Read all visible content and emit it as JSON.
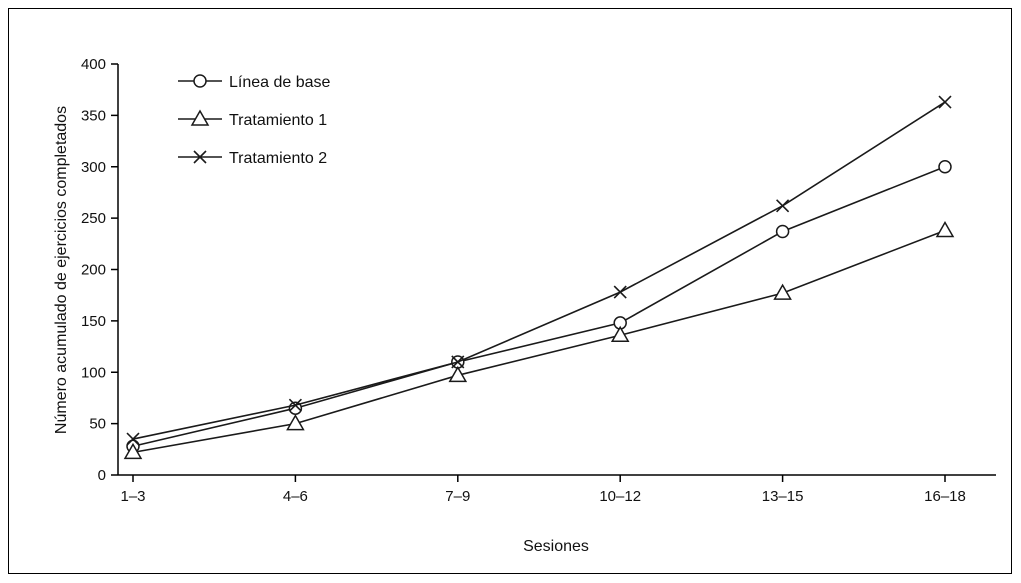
{
  "chart_data": {
    "type": "line",
    "title": "",
    "xlabel": "Sesiones",
    "ylabel": "Número acumulado de ejercicios completados",
    "categories": [
      "1–3",
      "4–6",
      "7–9",
      "10–12",
      "13–15",
      "16–18"
    ],
    "ylim": [
      0,
      400
    ],
    "yticks": [
      0,
      50,
      100,
      150,
      200,
      250,
      300,
      350,
      400
    ],
    "grid": false,
    "legend_position": "top-left",
    "series": [
      {
        "name": "Línea de base",
        "marker": "circle",
        "values": [
          28,
          65,
          110,
          148,
          237,
          300
        ]
      },
      {
        "name": "Tratamiento 1",
        "marker": "triangle",
        "values": [
          22,
          50,
          97,
          136,
          177,
          238
        ]
      },
      {
        "name": "Tratamiento 2",
        "marker": "x",
        "values": [
          35,
          68,
          110,
          178,
          262,
          363
        ]
      }
    ],
    "colors": {
      "line": "#1a1a1a",
      "marker_fill": "#ffffff"
    }
  }
}
